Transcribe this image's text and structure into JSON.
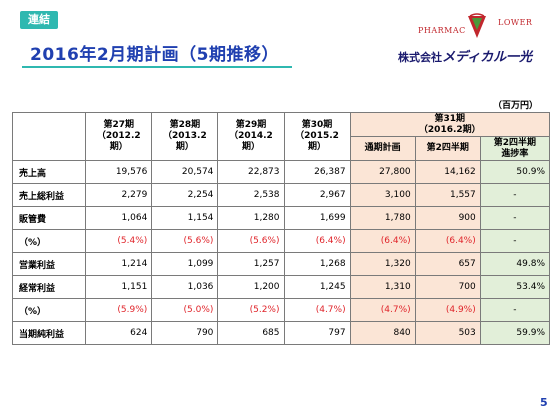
{
  "badge": "連結",
  "title": "2016年2月期計画（5期推移）",
  "logo": {
    "word1": "PHARMAC",
    "word2": "LOWER"
  },
  "company": {
    "prefix": "株式会社",
    "name": "メディカル一光"
  },
  "unit": "（百万円）",
  "columns": {
    "p27": {
      "period": "第27期",
      "date": "（2012.2期）"
    },
    "p28": {
      "period": "第28期",
      "date": "（2013.2期）"
    },
    "p29": {
      "period": "第29期",
      "date": "（2014.2期）"
    },
    "p30": {
      "period": "第30期",
      "date": "（2015.2期）"
    },
    "p31": {
      "period": "第31期",
      "date": "（2016.2期）"
    },
    "plan": "通期計画",
    "h2": "第2四半期",
    "progress_line1": "第2四半期",
    "progress_line2": "進捗率"
  },
  "rows": [
    {
      "label": "売上高",
      "v27": "19,576",
      "v28": "20,574",
      "v29": "22,873",
      "v30": "26,387",
      "plan": "27,800",
      "h2": "14,162",
      "prog": "50.9%",
      "red": false
    },
    {
      "label": "売上総利益",
      "v27": "2,279",
      "v28": "2,254",
      "v29": "2,538",
      "v30": "2,967",
      "plan": "3,100",
      "h2": "1,557",
      "prog": "-",
      "red": false
    },
    {
      "label": "販管費",
      "v27": "1,064",
      "v28": "1,154",
      "v29": "1,280",
      "v30": "1,699",
      "plan": "1,780",
      "h2": "900",
      "prog": "-",
      "red": false
    },
    {
      "label": "（%）",
      "v27": "(5.4%)",
      "v28": "(5.6%)",
      "v29": "(5.6%)",
      "v30": "(6.4%)",
      "plan": "(6.4%)",
      "h2": "(6.4%)",
      "prog": "-",
      "red": true
    },
    {
      "label": "営業利益",
      "v27": "1,214",
      "v28": "1,099",
      "v29": "1,257",
      "v30": "1,268",
      "plan": "1,320",
      "h2": "657",
      "prog": "49.8%",
      "red": false
    },
    {
      "label": "経常利益",
      "v27": "1,151",
      "v28": "1,036",
      "v29": "1,200",
      "v30": "1,245",
      "plan": "1,310",
      "h2": "700",
      "prog": "53.4%",
      "red": false
    },
    {
      "label": "（%）",
      "v27": "(5.9%)",
      "v28": "(5.0%)",
      "v29": "(5.2%)",
      "v30": "(4.7%)",
      "plan": "(4.7%)",
      "h2": "(4.9%)",
      "prog": "-",
      "red": true
    },
    {
      "label": "当期純利益",
      "v27": "624",
      "v28": "790",
      "v29": "685",
      "v30": "797",
      "plan": "840",
      "h2": "503",
      "prog": "59.9%",
      "red": false
    }
  ],
  "page_number": "5",
  "colors": {
    "accent": "#2fb8b0",
    "title": "#2040b0",
    "highlight": "#fbe5d6",
    "progress": "#e2efd9",
    "negative": "#e0252b"
  }
}
